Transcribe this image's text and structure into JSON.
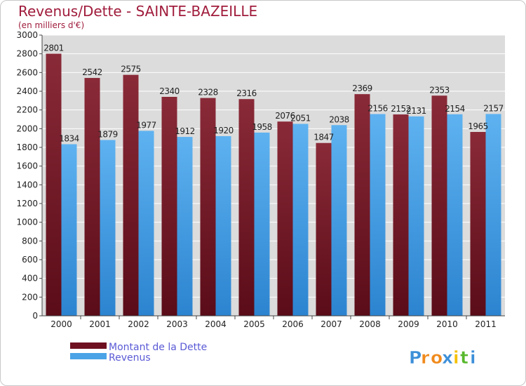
{
  "chart_data": {
    "type": "bar",
    "title": "Revenus/Dette - SAINTE-BAZEILLE",
    "subtitle": "(en milliers d'€)",
    "categories": [
      "2000",
      "2001",
      "2002",
      "2003",
      "2004",
      "2005",
      "2006",
      "2007",
      "2008",
      "2009",
      "2010",
      "2011"
    ],
    "series": [
      {
        "name": "Montant de la Dette",
        "color": "#6e1020",
        "values": [
          2801,
          2542,
          2575,
          2340,
          2328,
          2316,
          2076,
          1847,
          2369,
          2152,
          2353,
          1965
        ],
        "labels": [
          "2801",
          "2542",
          "2575",
          "2340",
          "2328",
          "2316",
          "2076",
          "1847",
          "2369",
          "2152",
          "2353",
          "1965"
        ]
      },
      {
        "name": "Revenus",
        "color": "#4aa3e6",
        "values": [
          1834,
          1879,
          1977,
          1912,
          1920,
          1958,
          2051,
          2038,
          2156,
          2131,
          2154,
          2157
        ],
        "labels": [
          "1834",
          "1879",
          "1977",
          "1912",
          "1920",
          "1958",
          "2051",
          "2038",
          "2156",
          "2131",
          "2154",
          "2157"
        ]
      }
    ],
    "ylim": [
      0,
      3000
    ],
    "yticks": [
      0,
      200,
      400,
      600,
      800,
      1000,
      1200,
      1400,
      1600,
      1800,
      2000,
      2200,
      2400,
      2600,
      2800,
      3000
    ],
    "ytick_labels": [
      "0",
      "200",
      "400",
      "600",
      "800",
      "1000",
      "1200",
      "1400",
      "1600",
      "1800",
      "2000",
      "2200",
      "2400",
      "2600",
      "2800",
      "3000"
    ],
    "grid": true,
    "legend_position": "bottom-left"
  },
  "logo": {
    "text": "Proxiti",
    "letters": [
      "P",
      "r",
      "o",
      "x",
      "i",
      "t",
      "i"
    ],
    "letter_colors": [
      "#3c8fd8",
      "#f08a1c",
      "#f08a1c",
      "#3c8fd8",
      "#f5c000",
      "#58b82c",
      "#3c8fd8"
    ]
  }
}
